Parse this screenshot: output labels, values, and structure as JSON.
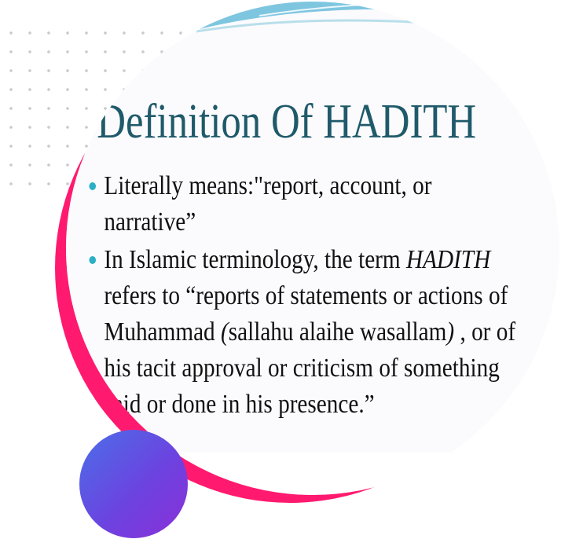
{
  "slide": {
    "title": "Definition Of HADITH",
    "bullet_1": "Literally means:\"report, account, or narrative”",
    "bullet_2_part_a": "In Islamic terminology, the term ",
    "bullet_2_emphasis": "HADITH",
    "bullet_2_part_b": " refers to “reports of statements or actions of Muhammad ",
    "bullet_2_paren_open": "(",
    "bullet_2_part_c": "sallahu alaihe wasallam",
    "bullet_2_paren_close": ")",
    "bullet_2_part_d": " , or of his tacit approval or criticism of something said or done in his presence.”"
  },
  "colors": {
    "title": "#1f5a6a",
    "bullet": "#2ab0c6",
    "pink_circle": "#ff1a6f",
    "purple_ball_start": "#4a6fe8",
    "purple_ball_end": "#8a2fd8",
    "wave": "#7ec6e0"
  }
}
